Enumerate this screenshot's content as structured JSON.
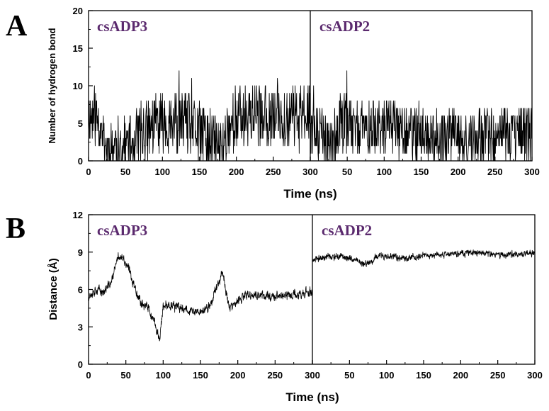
{
  "colors": {
    "label": "#5b2a6e",
    "trace": "#000000",
    "axis": "#000000"
  },
  "chart_data": [
    {
      "panel": "A",
      "type": "line",
      "xlabel": "Time (ns)",
      "ylabel": "Number of hydrogen bond",
      "ylim": [
        0,
        20
      ],
      "yticks": [
        0,
        5,
        10,
        15,
        20
      ],
      "xticks": [
        0,
        50,
        100,
        150,
        200,
        250,
        300
      ],
      "grid": false,
      "subpanels": [
        {
          "name": "csADP3",
          "xlim": [
            0,
            300
          ],
          "noise": 2.2,
          "x": [
            0,
            10,
            20,
            25,
            30,
            40,
            50,
            60,
            70,
            80,
            90,
            100,
            110,
            120,
            130,
            140,
            150,
            160,
            170,
            180,
            190,
            200,
            210,
            220,
            230,
            240,
            250,
            260,
            270,
            280,
            290,
            300
          ],
          "values": [
            6,
            6,
            4,
            1.5,
            2,
            2,
            2,
            2.5,
            4,
            4,
            5,
            5,
            5,
            5,
            5,
            4.5,
            4,
            3,
            2,
            1.5,
            5,
            5.5,
            6,
            6.5,
            6,
            6,
            5.5,
            6,
            6,
            6,
            6.5,
            6
          ]
        },
        {
          "name": "csADP2",
          "xlim": [
            0,
            300
          ],
          "noise": 2.2,
          "x": [
            0,
            10,
            20,
            30,
            40,
            50,
            60,
            70,
            80,
            90,
            100,
            120,
            140,
            160,
            180,
            200,
            220,
            240,
            260,
            280,
            300
          ],
          "values": [
            5,
            3.5,
            3,
            2,
            5.5,
            5,
            4.5,
            4.5,
            4.5,
            4.5,
            4.5,
            4,
            3.5,
            3,
            3,
            3,
            3,
            3.5,
            3.5,
            3.5,
            3.5
          ]
        }
      ]
    },
    {
      "panel": "B",
      "type": "line",
      "xlabel": "Time (ns)",
      "ylabel": "Distance (Å)",
      "ylim": [
        0,
        12
      ],
      "yticks": [
        0,
        3,
        6,
        9,
        12
      ],
      "xticks": [
        0,
        50,
        100,
        150,
        200,
        250,
        300
      ],
      "grid": false,
      "subpanels": [
        {
          "name": "csADP3",
          "xlim": [
            0,
            300
          ],
          "noise": 0.45,
          "x": [
            0,
            10,
            20,
            30,
            40,
            45,
            55,
            60,
            70,
            80,
            90,
            95,
            100,
            110,
            120,
            130,
            140,
            150,
            160,
            165,
            170,
            180,
            185,
            190,
            200,
            210,
            220,
            240,
            260,
            280,
            300
          ],
          "values": [
            5.5,
            6,
            5.8,
            6.5,
            8.7,
            8.5,
            7.5,
            6.5,
            5,
            4.5,
            3,
            2,
            4.5,
            4.8,
            4.5,
            4.5,
            4.2,
            4.2,
            4.5,
            5,
            6,
            7.5,
            5.5,
            4.5,
            5,
            5.5,
            5.5,
            5.5,
            5.5,
            5.6,
            5.8
          ]
        },
        {
          "name": "csADP2",
          "xlim": [
            0,
            300
          ],
          "noise": 0.3,
          "x": [
            0,
            10,
            20,
            40,
            60,
            70,
            80,
            90,
            100,
            120,
            140,
            160,
            180,
            200,
            220,
            240,
            260,
            280,
            300
          ],
          "values": [
            8.3,
            8.5,
            8.6,
            8.6,
            8.4,
            8.0,
            8.3,
            8.8,
            8.7,
            8.5,
            8.6,
            8.7,
            8.8,
            8.9,
            9.0,
            8.8,
            8.8,
            8.9,
            8.9
          ]
        }
      ]
    }
  ]
}
